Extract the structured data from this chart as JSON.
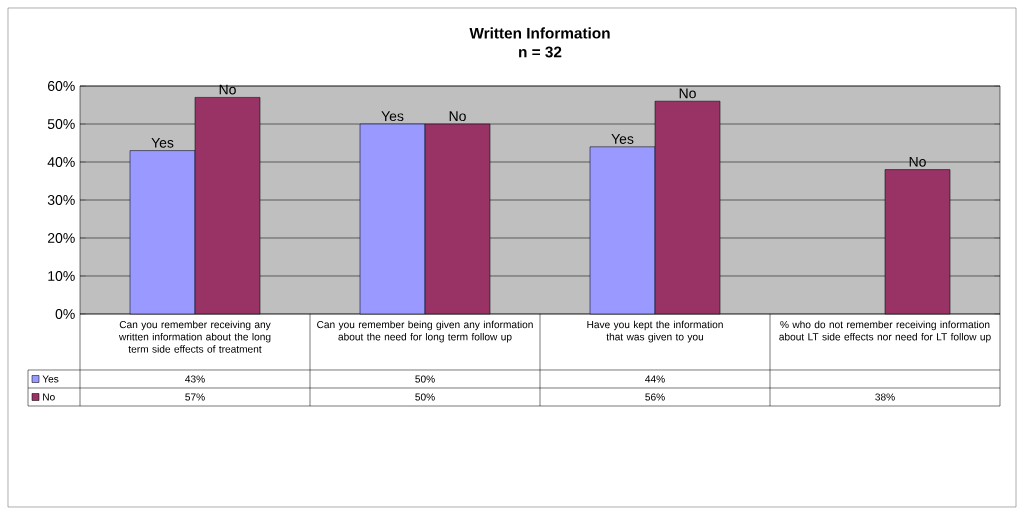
{
  "chart_data": {
    "type": "bar",
    "title": "Written Information",
    "subtitle": "n = 32",
    "categories": [
      "Can you remember receiving any written information about the long term side effects of treatment",
      "Can you remember being given any information about the need for long term follow up",
      "Have you kept the information that was given to you",
      "% who do not remember receiving information about LT side effects nor need for LT follow up"
    ],
    "series": [
      {
        "name": "Yes",
        "color": "#9999ff",
        "values": [
          43,
          50,
          44,
          null
        ],
        "value_labels": [
          "43%",
          "50%",
          "44%",
          null
        ]
      },
      {
        "name": "No",
        "color": "#993366",
        "values": [
          57,
          50,
          56,
          38
        ],
        "value_labels": [
          "57%",
          "50%",
          "56%",
          "38%"
        ]
      }
    ],
    "ylim": [
      0,
      60
    ],
    "yticks": [
      {
        "value": 0,
        "label": "0%"
      },
      {
        "value": 10,
        "label": "10%"
      },
      {
        "value": 20,
        "label": "20%"
      },
      {
        "value": 30,
        "label": "30%"
      },
      {
        "value": 40,
        "label": "40%"
      },
      {
        "value": 50,
        "label": "50%"
      },
      {
        "value": 60,
        "label": "60%"
      }
    ],
    "grid": "y",
    "legend": "bottom"
  }
}
